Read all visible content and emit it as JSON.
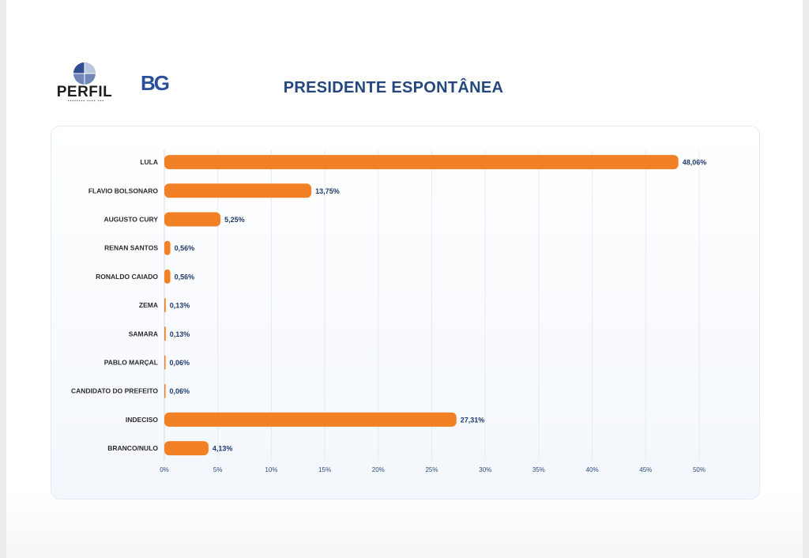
{
  "header": {
    "logo_perfil_text": "PERFIL",
    "logo_bg_text": "BG",
    "title": "PRESIDENTE ESPONTÂNEA"
  },
  "colors": {
    "bar": "#f28126",
    "title": "#25477d",
    "value_label": "#1f3b6b",
    "category_label": "#2b2b2b",
    "grid": "#e6ebf1",
    "tick_label": "#2c4a7a"
  },
  "chart_data": {
    "type": "bar",
    "orientation": "horizontal",
    "title": "PRESIDENTE ESPONTÂNEA",
    "categories": [
      "LULA",
      "FLAVIO BOLSONARO",
      "AUGUSTO CURY",
      "RENAN SANTOS",
      "RONALDO CAIADO",
      "ZEMA",
      "SAMARA",
      "PABLO MARÇAL",
      "CANDIDATO DO PREFEITO",
      "INDECISO",
      "BRANCO/NULO"
    ],
    "values": [
      48.06,
      13.75,
      5.25,
      0.56,
      0.56,
      0.13,
      0.13,
      0.06,
      0.06,
      27.31,
      4.13
    ],
    "value_labels": [
      "48,06%",
      "13,75%",
      "5,25%",
      "0,56%",
      "0,56%",
      "0,13%",
      "0,13%",
      "0,06%",
      "0,06%",
      "27,31%",
      "4,13%"
    ],
    "x_ticks": [
      0,
      5,
      10,
      15,
      20,
      25,
      30,
      35,
      40,
      45,
      50
    ],
    "x_tick_labels": [
      "0%",
      "5%",
      "10%",
      "15%",
      "20%",
      "25%",
      "30%",
      "35%",
      "40%",
      "45%",
      "50%"
    ],
    "xlim": [
      0,
      50
    ],
    "grid": true,
    "legend": "none"
  }
}
